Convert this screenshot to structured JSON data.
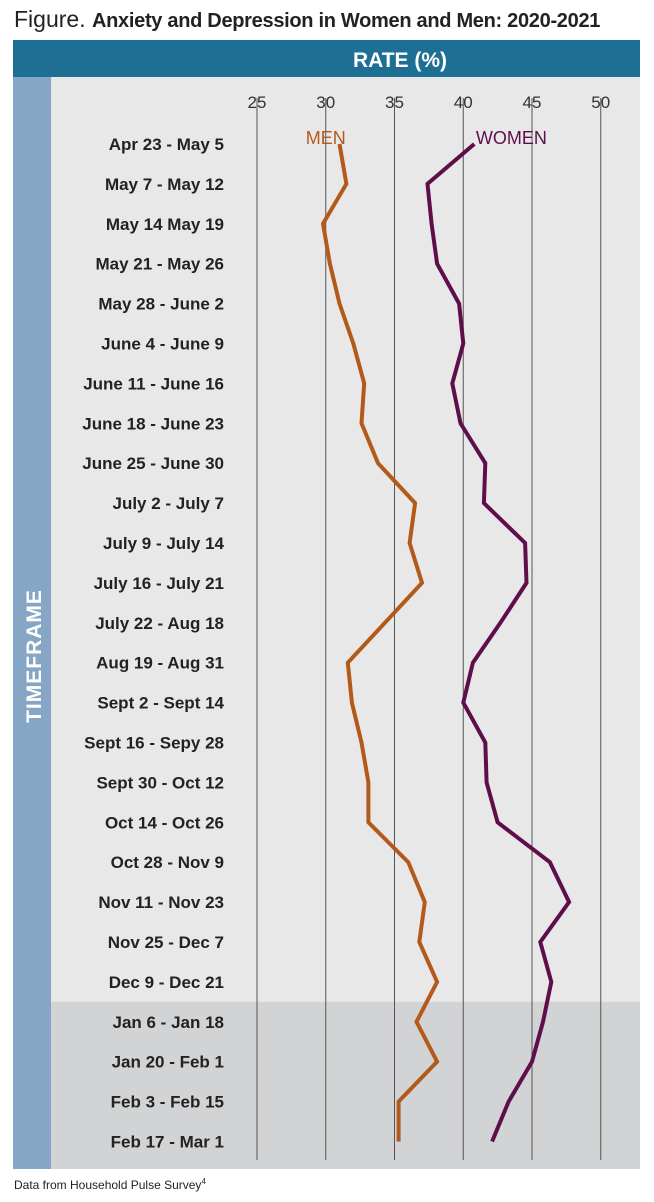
{
  "title": {
    "lead": "Figure.",
    "main": "Anxiety and Depression in Women and Men: 2020-2021"
  },
  "footnote": {
    "text": "Data from Household Pulse Survey",
    "superscript": "4"
  },
  "colors": {
    "header_band": "#1e6f94",
    "side_band": "#86a6c5",
    "plot_bg": "#e8e8e8",
    "plot_bg_2021": "#d2d3d5",
    "gridline": "#555555",
    "men": "#b35a1b",
    "women": "#5e0f4b"
  },
  "chart_data": {
    "type": "line",
    "orientation": "horizontal",
    "title": "Anxiety and Depression in Women and Men: 2020-2021",
    "xlabel": "RATE (%)",
    "ylabel": "TIMEFRAME",
    "xlim": [
      25,
      52
    ],
    "xticks": [
      25,
      30,
      35,
      40,
      45,
      50
    ],
    "grid": true,
    "categories": [
      "Apr 23 - May 5",
      "May 7 - May 12",
      "May 14  May 19",
      "May 21 - May 26",
      "May 28 - June 2",
      "June 4 - June 9",
      "June 11 - June 16",
      "June 18 - June 23",
      "June 25 - June 30",
      "July 2 - July 7",
      "July 9 - July 14",
      "July 16 - July 21",
      "July 22 - Aug 18",
      "Aug 19 - Aug 31",
      "Sept 2 - Sept 14",
      "Sept 16 - Sepy 28",
      "Sept 30 - Oct 12",
      "Oct 14 - Oct 26",
      "Oct 28 - Nov 9",
      "Nov 11 - Nov 23",
      "Nov 25 - Dec 7",
      "Dec 9 - Dec 21",
      "Jan 6 - Jan 18",
      "Jan 20 - Feb 1",
      "Feb 3 - Feb 15",
      "Feb 17 - Mar 1"
    ],
    "shaded_from_index": 22,
    "series": [
      {
        "name": "MEN",
        "values": [
          31.0,
          31.5,
          29.8,
          30.3,
          31.0,
          32.0,
          32.8,
          32.6,
          33.8,
          36.5,
          36.1,
          37.0,
          34.3,
          31.6,
          31.9,
          32.6,
          33.1,
          33.1,
          36.0,
          37.2,
          36.8,
          38.1,
          36.6,
          38.1,
          35.3,
          35.3
        ],
        "label_position": [
          30.0,
          1
        ]
      },
      {
        "name": "WOMEN",
        "values": [
          40.8,
          37.4,
          37.7,
          38.1,
          39.7,
          40.0,
          39.2,
          39.8,
          41.6,
          41.5,
          44.5,
          44.6,
          42.7,
          40.7,
          40.0,
          41.6,
          41.7,
          42.5,
          46.3,
          47.7,
          45.6,
          46.4,
          45.8,
          45.0,
          43.3,
          42.1
        ],
        "label_position": [
          43.5,
          1
        ]
      }
    ]
  }
}
